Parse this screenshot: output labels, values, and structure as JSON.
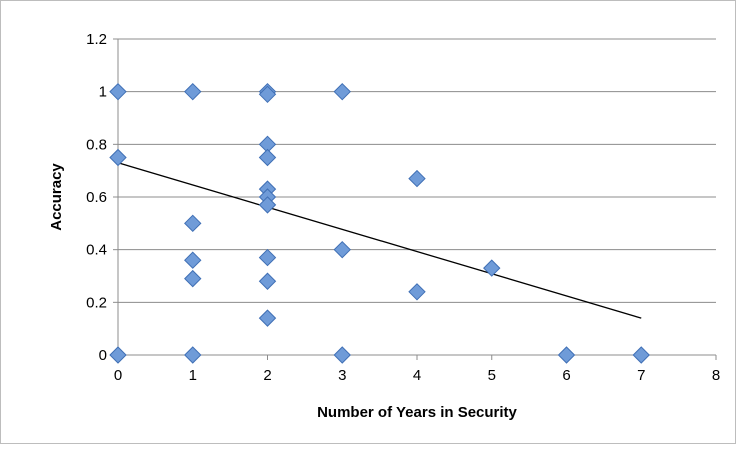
{
  "chart_data": {
    "type": "scatter",
    "title": "",
    "xlabel": "Number of Years in Security",
    "ylabel": "Accuracy",
    "xlim": [
      0,
      8
    ],
    "ylim": [
      0,
      1.2
    ],
    "x_ticks": [
      "0",
      "1",
      "2",
      "3",
      "4",
      "5",
      "6",
      "7",
      "8"
    ],
    "y_ticks": [
      "0",
      "0.2",
      "0.4",
      "0.6",
      "0.8",
      "1",
      "1.2"
    ],
    "x_tick_values": [
      0,
      1,
      2,
      3,
      4,
      5,
      6,
      7,
      8
    ],
    "y_tick_values": [
      0,
      0.2,
      0.4,
      0.6,
      0.8,
      1.0,
      1.2
    ],
    "grid": "horizontal",
    "legend": "none",
    "marker": "diamond",
    "marker_color": "#6f9bd8",
    "marker_edge_color": "#3f6fb5",
    "trendline_color": "#000000",
    "points": [
      {
        "x": 0,
        "y": 1.0
      },
      {
        "x": 0,
        "y": 0.75
      },
      {
        "x": 0,
        "y": 0.0
      },
      {
        "x": 1,
        "y": 1.0
      },
      {
        "x": 1,
        "y": 0.5
      },
      {
        "x": 1,
        "y": 0.36
      },
      {
        "x": 1,
        "y": 0.29
      },
      {
        "x": 1,
        "y": 0.0
      },
      {
        "x": 2,
        "y": 1.0
      },
      {
        "x": 2,
        "y": 0.99
      },
      {
        "x": 2,
        "y": 0.8
      },
      {
        "x": 2,
        "y": 0.75
      },
      {
        "x": 2,
        "y": 0.63
      },
      {
        "x": 2,
        "y": 0.6
      },
      {
        "x": 2,
        "y": 0.57
      },
      {
        "x": 2,
        "y": 0.37
      },
      {
        "x": 2,
        "y": 0.28
      },
      {
        "x": 2,
        "y": 0.14
      },
      {
        "x": 3,
        "y": 1.0
      },
      {
        "x": 3,
        "y": 0.4
      },
      {
        "x": 3,
        "y": 0.0
      },
      {
        "x": 4,
        "y": 0.67
      },
      {
        "x": 4,
        "y": 0.24
      },
      {
        "x": 5,
        "y": 0.33
      },
      {
        "x": 6,
        "y": 0.0
      },
      {
        "x": 7,
        "y": 0.0
      }
    ],
    "trendline": {
      "type": "linear",
      "x": [
        0,
        7
      ],
      "y": [
        0.73,
        0.14
      ]
    }
  }
}
